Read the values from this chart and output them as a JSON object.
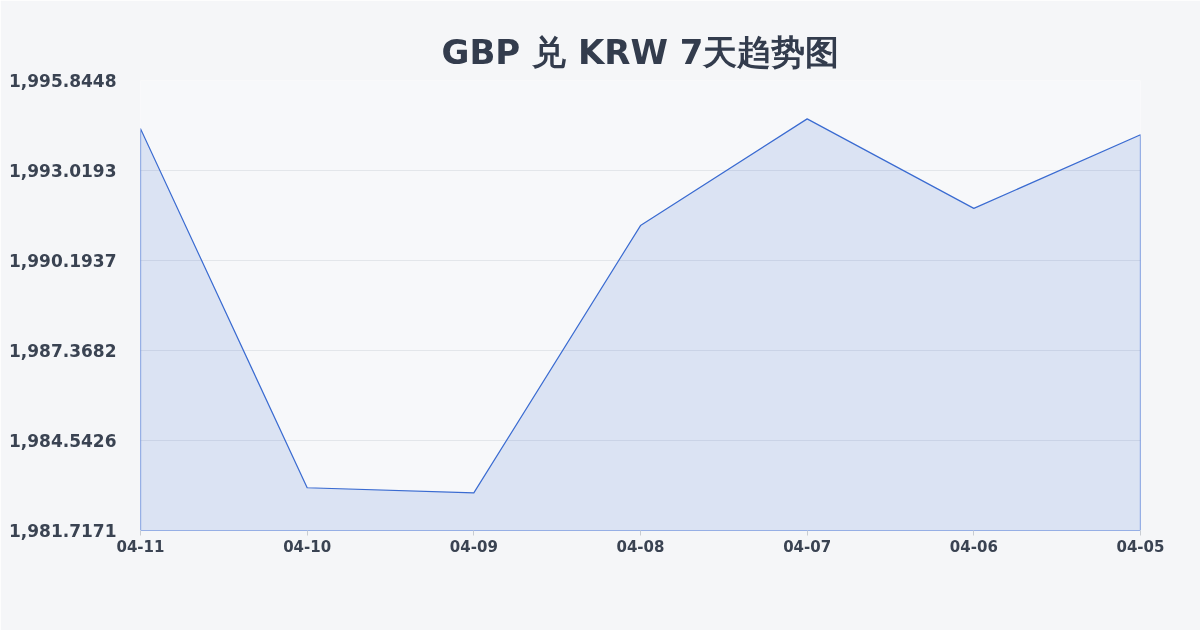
{
  "chart_data": {
    "type": "area",
    "title": "GBP 兑 KRW 7天趋势图",
    "categories": [
      "04-11",
      "04-10",
      "04-09",
      "04-08",
      "04-07",
      "04-06",
      "04-05"
    ],
    "series": [
      {
        "color": "#3a6bd1",
        "values": [
          1994.33,
          1983.06,
          1982.9,
          1991.29,
          1994.64,
          1991.83,
          1994.14
        ]
      }
    ],
    "ylim": [
      1981.7171,
      1995.8448
    ],
    "yticks": [
      {
        "value": 1981.7171,
        "label": "1,981.7171"
      },
      {
        "value": 1984.5426,
        "label": "1,984.5426"
      },
      {
        "value": 1987.3682,
        "label": "1,987.3682"
      },
      {
        "value": 1990.1937,
        "label": "1,990.1937"
      },
      {
        "value": 1993.0193,
        "label": "1,993.0193"
      },
      {
        "value": 1995.8448,
        "label": "1,995.8448"
      }
    ],
    "grid": "y"
  }
}
